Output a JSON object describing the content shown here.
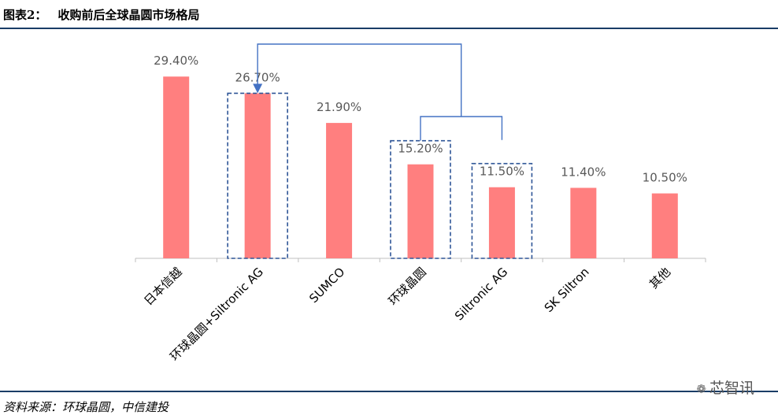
{
  "header": {
    "figure_no": "图表2：",
    "title": "收购前后全球晶圆市场格局"
  },
  "footer": {
    "source": "资料来源：环球晶圆，中信建投"
  },
  "watermark": {
    "icon": "wechat-icon",
    "text": "芯智讯"
  },
  "colors": {
    "bar": "#ff7f7f",
    "bracket": "#4472c4",
    "dash": "#2e5597",
    "axis": "#bfbfbf",
    "label": "#595959"
  },
  "chart_data": {
    "type": "bar",
    "categories": [
      "日本信越",
      "环球晶圆+Siltronic AG",
      "SUMCO",
      "环球晶圆",
      "Siltronic AG",
      "SK Siltron",
      "其他"
    ],
    "values": [
      29.4,
      26.7,
      21.9,
      15.2,
      11.5,
      11.4,
      10.5
    ],
    "value_labels": [
      "29.40%",
      "26.70%",
      "21.90%",
      "15.20%",
      "11.50%",
      "11.40%",
      "10.50%"
    ],
    "ylim": [
      0,
      35
    ],
    "grid": false,
    "annotation": "Bars for 环球晶圆 and Siltronic AG (dashed boxes) combine into 环球晶圆+Siltronic AG (dashed box), indicated by bracket arrow"
  }
}
